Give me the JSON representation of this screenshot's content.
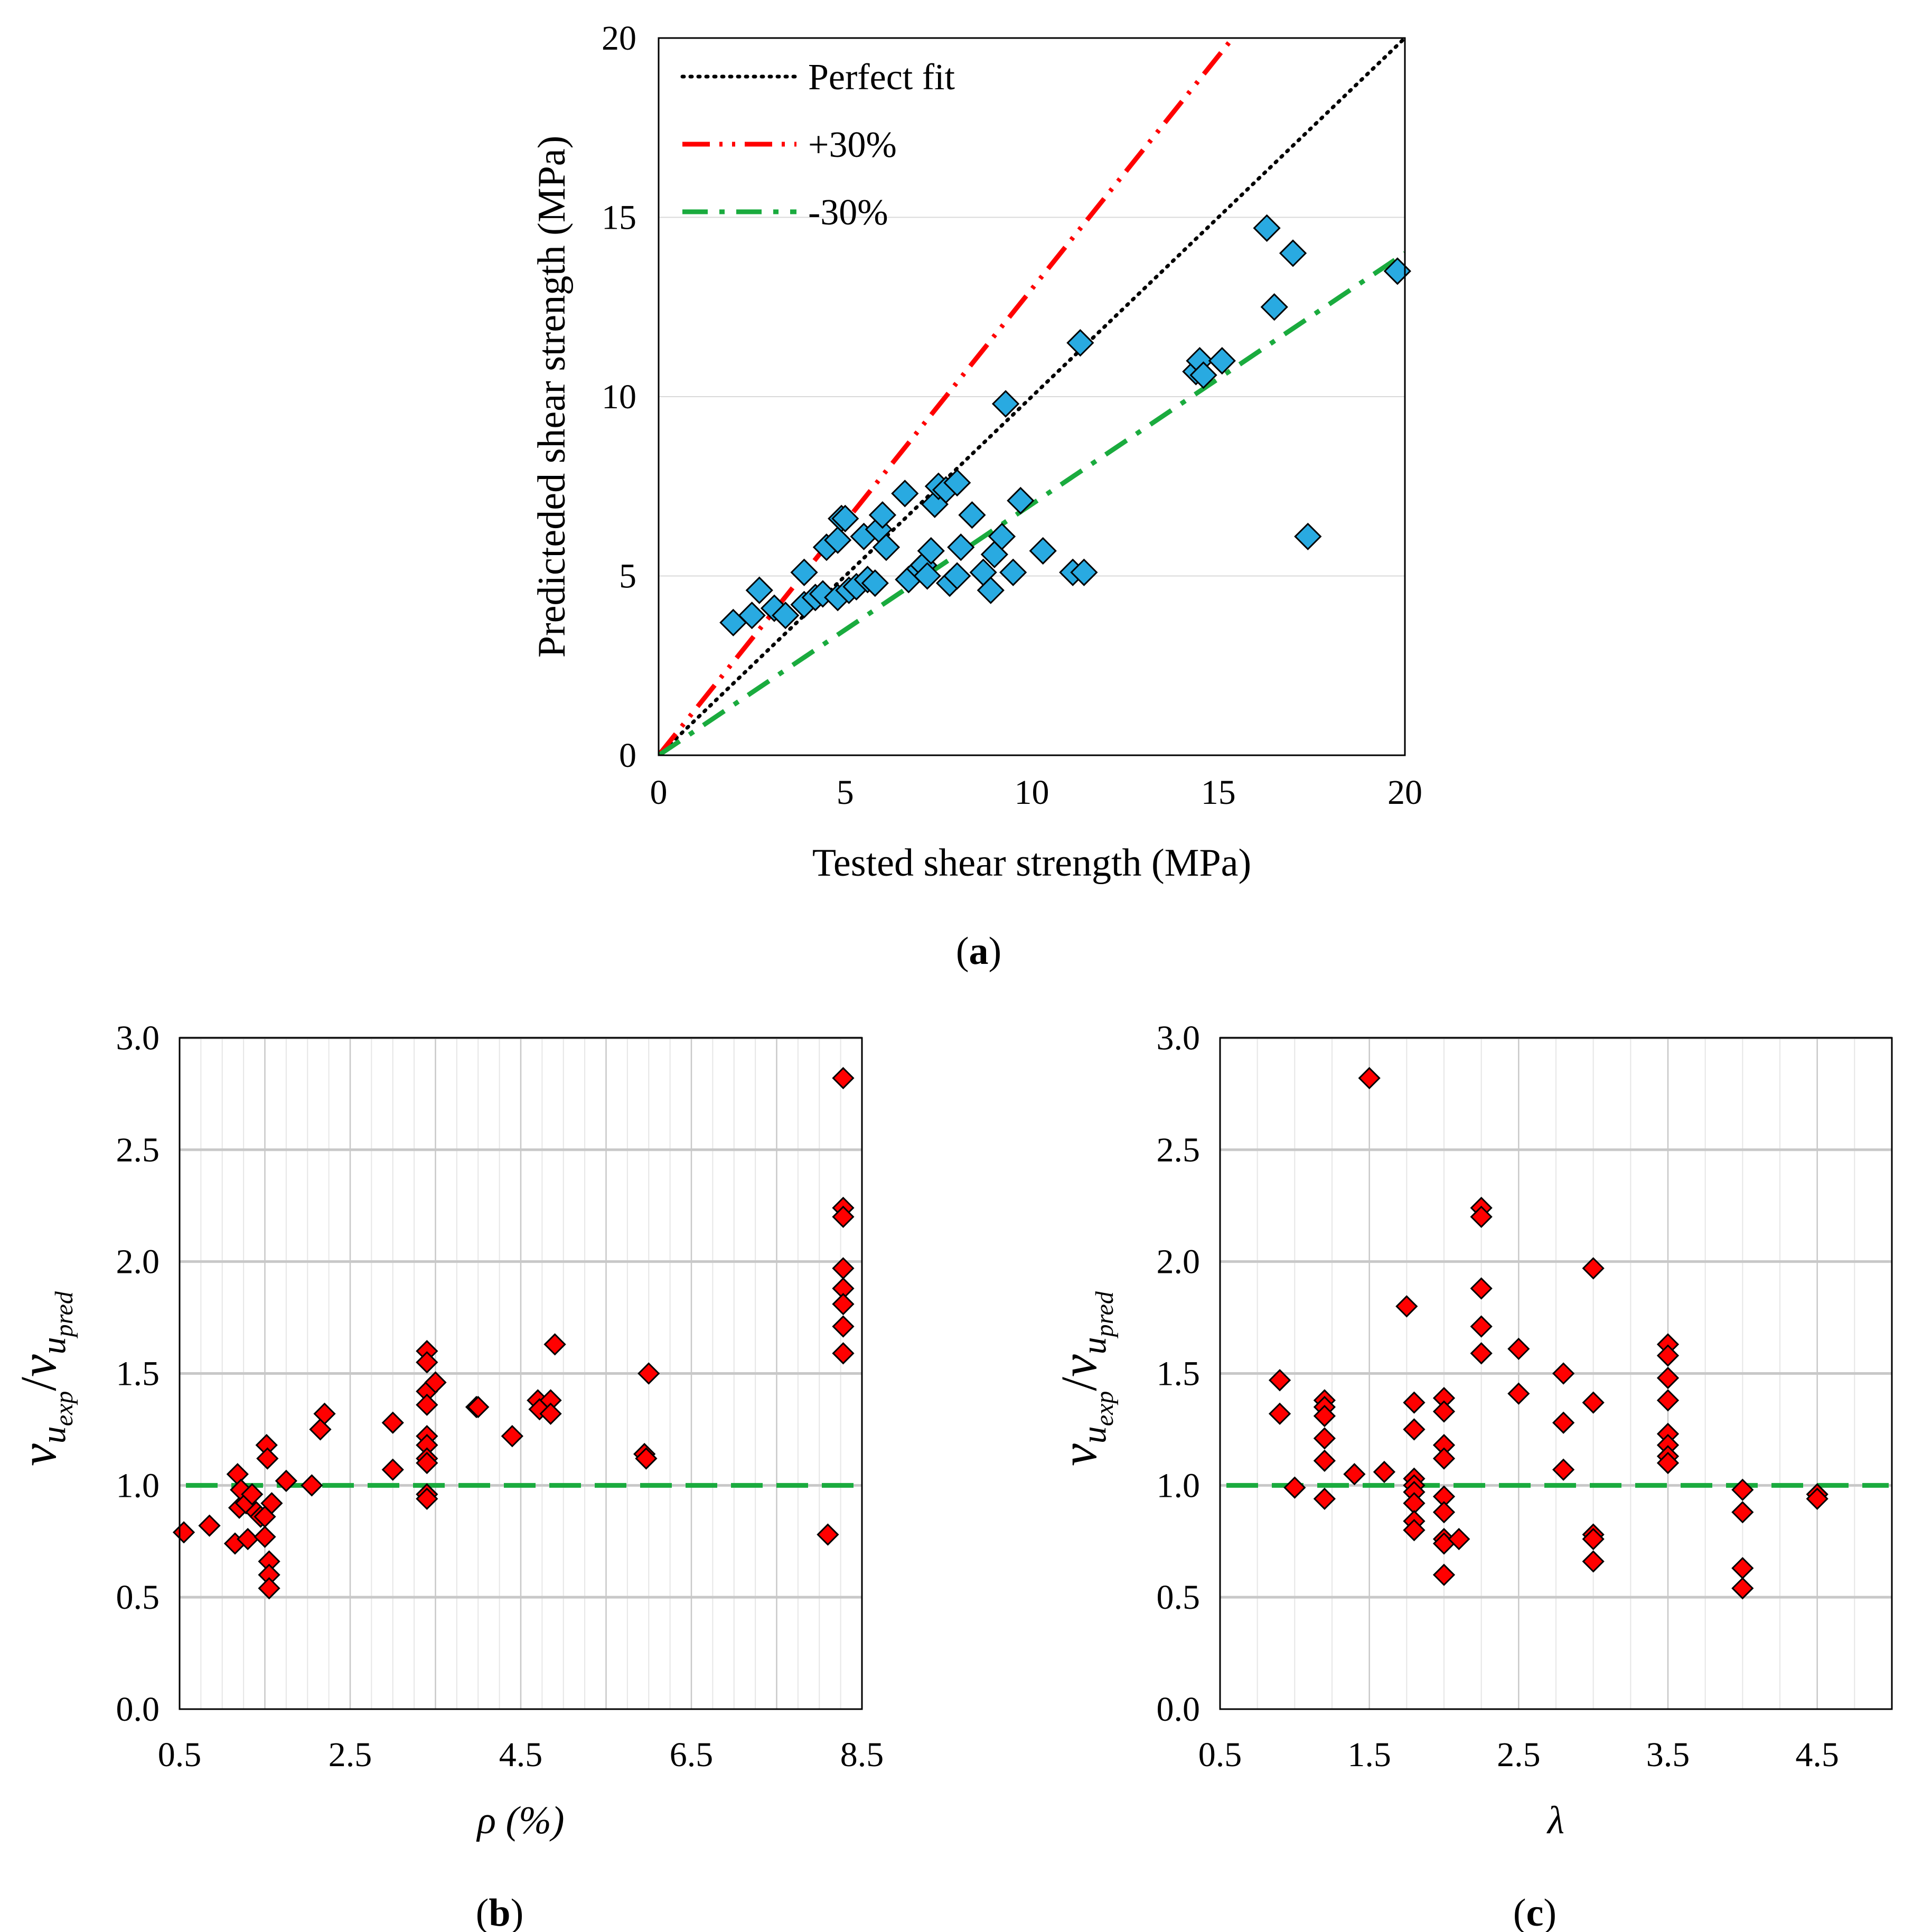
{
  "chart_data": [
    {
      "type": "scatter",
      "xlabel": "Tested shear strength (MPa)",
      "ylabel": "Predicteded shear strength (MPa)",
      "xlim": [
        0,
        20
      ],
      "ylim": [
        0,
        20
      ],
      "xticks": [
        "0",
        "5",
        "10",
        "15",
        "20"
      ],
      "yticks": [
        "0",
        "5",
        "10",
        "15",
        "20"
      ],
      "legend_position": "top-left",
      "caption": {
        "open": "(",
        "letter": "a",
        "close": ")"
      },
      "lines": [
        {
          "name": "Perfect fit",
          "slope": 1.0,
          "color": "#000000",
          "style": "dotted"
        },
        {
          "name": "+30%",
          "slope": 1.3,
          "color": "#ff0000",
          "style": "dash-dot-dot"
        },
        {
          "name": "-30%",
          "slope": 0.7,
          "color": "#1aab3e",
          "style": "dash-dot"
        }
      ],
      "point_color": "#29aae1",
      "points": [
        [
          2.0,
          3.7
        ],
        [
          2.5,
          3.9
        ],
        [
          2.7,
          4.6
        ],
        [
          3.1,
          4.1
        ],
        [
          3.4,
          3.9
        ],
        [
          3.9,
          4.2
        ],
        [
          3.9,
          5.1
        ],
        [
          4.2,
          4.4
        ],
        [
          4.4,
          4.5
        ],
        [
          4.5,
          5.8
        ],
        [
          4.8,
          4.4
        ],
        [
          4.8,
          6.0
        ],
        [
          4.9,
          6.6
        ],
        [
          5.0,
          6.6
        ],
        [
          5.1,
          4.6
        ],
        [
          5.3,
          4.7
        ],
        [
          5.5,
          6.1
        ],
        [
          5.6,
          4.9
        ],
        [
          5.8,
          4.8
        ],
        [
          5.9,
          6.3
        ],
        [
          6.0,
          6.7
        ],
        [
          6.1,
          5.8
        ],
        [
          6.6,
          7.3
        ],
        [
          6.7,
          4.9
        ],
        [
          7.0,
          5.2
        ],
        [
          7.1,
          5.3
        ],
        [
          7.2,
          5.0
        ],
        [
          7.3,
          5.7
        ],
        [
          7.4,
          7.0
        ],
        [
          7.5,
          7.5
        ],
        [
          7.7,
          7.4
        ],
        [
          7.8,
          4.8
        ],
        [
          8.0,
          7.6
        ],
        [
          8.0,
          5.0
        ],
        [
          8.1,
          5.8
        ],
        [
          8.4,
          6.7
        ],
        [
          8.7,
          5.1
        ],
        [
          8.9,
          4.6
        ],
        [
          9.0,
          5.6
        ],
        [
          9.2,
          6.1
        ],
        [
          9.3,
          9.8
        ],
        [
          9.5,
          5.1
        ],
        [
          9.7,
          7.1
        ],
        [
          10.3,
          5.7
        ],
        [
          11.1,
          5.1
        ],
        [
          11.3,
          11.5
        ],
        [
          11.4,
          5.1
        ],
        [
          14.4,
          10.7
        ],
        [
          14.5,
          11.0
        ],
        [
          14.6,
          10.6
        ],
        [
          15.1,
          11.0
        ],
        [
          16.3,
          14.7
        ],
        [
          16.5,
          12.5
        ],
        [
          17.0,
          14.0
        ],
        [
          17.4,
          6.1
        ],
        [
          19.8,
          13.5
        ]
      ]
    },
    {
      "type": "scatter",
      "xlabel": "ρ (%)",
      "ylabel": "v_uexp / v_upred",
      "ylabel_parts": {
        "v": "v",
        "u": "u",
        "exp": "exp",
        "pred": "pred",
        "slash": "/"
      },
      "xlim": [
        0.5,
        8.5
      ],
      "ylim": [
        0.0,
        3.0
      ],
      "xticks": [
        "0.5",
        "2.5",
        "4.5",
        "6.5",
        "8.5"
      ],
      "yticks": [
        "0.0",
        "0.5",
        "1.0",
        "1.5",
        "2.0",
        "2.5",
        "3.0"
      ],
      "reference_line": {
        "y": 1.0,
        "color": "#1aab3e",
        "style": "dashed"
      },
      "point_color": "#ff0000",
      "caption": {
        "open": "(",
        "letter": "b",
        "close": ")"
      },
      "points": [
        [
          0.55,
          0.79
        ],
        [
          0.85,
          0.82
        ],
        [
          1.15,
          0.74
        ],
        [
          1.18,
          1.05
        ],
        [
          1.2,
          0.9
        ],
        [
          1.22,
          0.98
        ],
        [
          1.28,
          0.92
        ],
        [
          1.3,
          0.76
        ],
        [
          1.35,
          0.96
        ],
        [
          1.4,
          0.88
        ],
        [
          1.45,
          0.86
        ],
        [
          1.5,
          0.86
        ],
        [
          1.5,
          0.77
        ],
        [
          1.52,
          1.18
        ],
        [
          1.53,
          1.12
        ],
        [
          1.55,
          0.66
        ],
        [
          1.55,
          0.6
        ],
        [
          1.55,
          0.54
        ],
        [
          1.58,
          0.92
        ],
        [
          1.75,
          1.02
        ],
        [
          2.05,
          1.0
        ],
        [
          2.15,
          1.25
        ],
        [
          2.2,
          1.32
        ],
        [
          3.0,
          1.28
        ],
        [
          3.0,
          1.07
        ],
        [
          3.4,
          1.6
        ],
        [
          3.4,
          1.55
        ],
        [
          3.4,
          1.42
        ],
        [
          3.4,
          1.36
        ],
        [
          3.4,
          1.22
        ],
        [
          3.4,
          1.18
        ],
        [
          3.4,
          1.12
        ],
        [
          3.4,
          1.1
        ],
        [
          3.4,
          0.96
        ],
        [
          3.4,
          0.94
        ],
        [
          3.5,
          1.46
        ],
        [
          3.98,
          1.35
        ],
        [
          4.0,
          1.35
        ],
        [
          4.4,
          1.22
        ],
        [
          4.7,
          1.38
        ],
        [
          4.72,
          1.34
        ],
        [
          4.85,
          1.38
        ],
        [
          4.85,
          1.32
        ],
        [
          4.9,
          1.63
        ],
        [
          5.95,
          1.14
        ],
        [
          5.97,
          1.12
        ],
        [
          6.0,
          1.5
        ],
        [
          8.1,
          0.78
        ],
        [
          8.28,
          2.82
        ],
        [
          8.28,
          2.24
        ],
        [
          8.28,
          2.2
        ],
        [
          8.28,
          1.97
        ],
        [
          8.28,
          1.88
        ],
        [
          8.28,
          1.81
        ],
        [
          8.28,
          1.71
        ],
        [
          8.28,
          1.59
        ]
      ]
    },
    {
      "type": "scatter",
      "xlabel": "λ",
      "ylabel": "v_uexp / v_upred",
      "ylabel_parts": {
        "v": "v",
        "u": "u",
        "exp": "exp",
        "pred": "pred",
        "slash": "/"
      },
      "xlim": [
        0.5,
        5.0
      ],
      "ylim": [
        0.0,
        3.0
      ],
      "xticks": [
        "0.5",
        "1.5",
        "2.5",
        "3.5",
        "4.5"
      ],
      "yticks": [
        "0.0",
        "0.5",
        "1.0",
        "1.5",
        "2.0",
        "2.5",
        "3.0"
      ],
      "reference_line": {
        "y": 1.0,
        "color": "#1aab3e",
        "style": "dashed"
      },
      "point_color": "#ff0000",
      "caption": {
        "open": "(",
        "letter": "c",
        "close": ")"
      },
      "points": [
        [
          0.9,
          1.47
        ],
        [
          0.9,
          1.32
        ],
        [
          1.0,
          0.99
        ],
        [
          1.2,
          1.38
        ],
        [
          1.2,
          1.35
        ],
        [
          1.2,
          1.31
        ],
        [
          1.2,
          1.21
        ],
        [
          1.2,
          1.11
        ],
        [
          1.2,
          0.94
        ],
        [
          1.4,
          1.05
        ],
        [
          1.5,
          2.82
        ],
        [
          1.6,
          1.06
        ],
        [
          1.75,
          1.8
        ],
        [
          1.8,
          1.37
        ],
        [
          1.8,
          1.25
        ],
        [
          1.8,
          1.03
        ],
        [
          1.8,
          1.0
        ],
        [
          1.8,
          0.97
        ],
        [
          1.8,
          0.92
        ],
        [
          1.8,
          0.84
        ],
        [
          1.8,
          0.8
        ],
        [
          2.0,
          1.39
        ],
        [
          2.0,
          1.33
        ],
        [
          2.0,
          1.18
        ],
        [
          2.0,
          1.12
        ],
        [
          2.0,
          0.95
        ],
        [
          2.0,
          0.88
        ],
        [
          2.0,
          0.76
        ],
        [
          2.0,
          0.74
        ],
        [
          2.0,
          0.6
        ],
        [
          2.1,
          0.76
        ],
        [
          2.25,
          2.24
        ],
        [
          2.25,
          2.2
        ],
        [
          2.25,
          1.88
        ],
        [
          2.25,
          1.71
        ],
        [
          2.25,
          1.59
        ],
        [
          2.5,
          1.61
        ],
        [
          2.5,
          1.41
        ],
        [
          2.8,
          1.5
        ],
        [
          2.8,
          1.28
        ],
        [
          2.8,
          1.07
        ],
        [
          3.0,
          1.97
        ],
        [
          3.0,
          1.37
        ],
        [
          3.0,
          0.78
        ],
        [
          3.0,
          0.76
        ],
        [
          3.0,
          0.66
        ],
        [
          3.5,
          1.63
        ],
        [
          3.5,
          1.58
        ],
        [
          3.5,
          1.48
        ],
        [
          3.5,
          1.38
        ],
        [
          3.5,
          1.23
        ],
        [
          3.5,
          1.18
        ],
        [
          3.5,
          1.13
        ],
        [
          3.5,
          1.1
        ],
        [
          4.0,
          0.98
        ],
        [
          4.0,
          0.88
        ],
        [
          4.0,
          0.63
        ],
        [
          4.0,
          0.54
        ],
        [
          4.5,
          0.96
        ],
        [
          4.5,
          0.94
        ]
      ]
    }
  ]
}
